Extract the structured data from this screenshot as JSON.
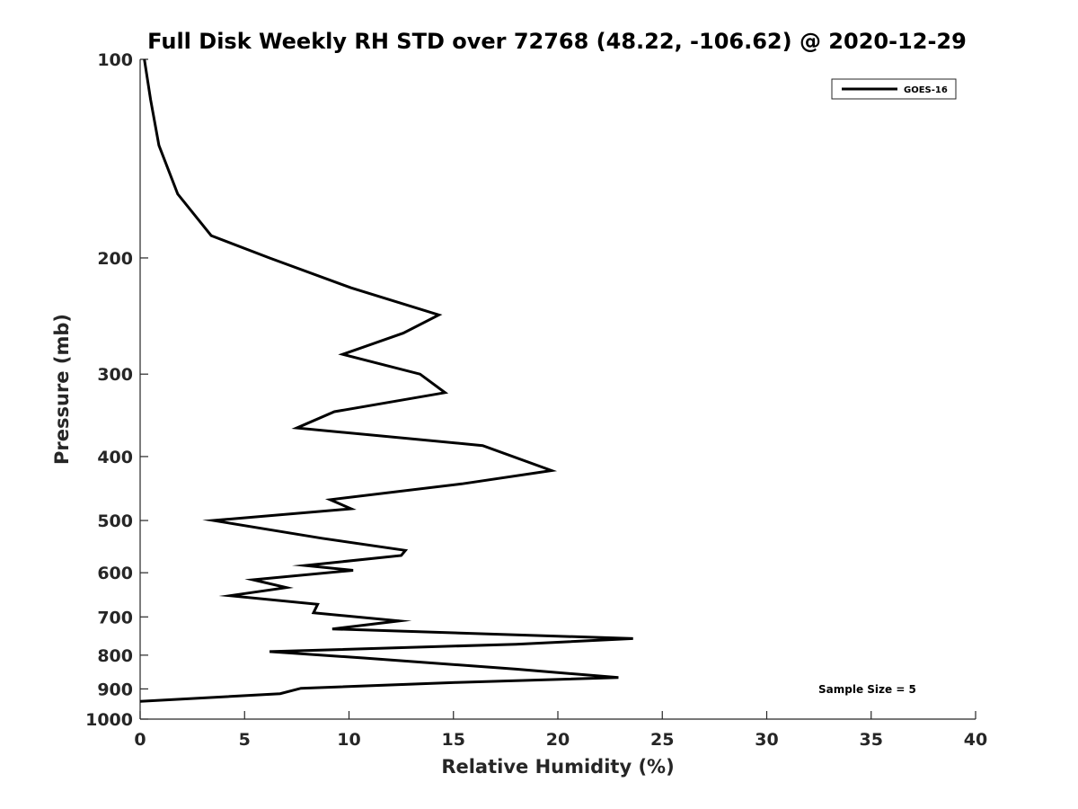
{
  "chart_data": {
    "type": "line",
    "title": "Full Disk Weekly RH STD over 72768 (48.22, -106.62) @ 2020-12-29",
    "xlabel": "Relative Humidity (%)",
    "ylabel": "Pressure (mb)",
    "xlim": [
      0,
      40
    ],
    "ylim": [
      100,
      1000
    ],
    "y_scale": "log",
    "y_reversed": true,
    "x_ticks": [
      0,
      5,
      10,
      15,
      20,
      25,
      30,
      35,
      40
    ],
    "y_ticks": [
      100,
      200,
      300,
      400,
      500,
      600,
      700,
      800,
      900,
      1000
    ],
    "grid": false,
    "legend_position": "top-right",
    "annotation": "Sample Size = 5",
    "series": [
      {
        "name": "GOES-16",
        "color": "#000000",
        "points": [
          [
            0.2,
            100
          ],
          [
            0.5,
            115
          ],
          [
            0.9,
            135
          ],
          [
            1.8,
            160
          ],
          [
            3.4,
            185
          ],
          [
            6.2,
            200
          ],
          [
            10.1,
            222
          ],
          [
            14.3,
            244
          ],
          [
            12.6,
            260
          ],
          [
            9.7,
            280
          ],
          [
            13.4,
            300
          ],
          [
            14.6,
            320
          ],
          [
            9.3,
            342
          ],
          [
            7.5,
            362
          ],
          [
            16.4,
            385
          ],
          [
            19.7,
            420
          ],
          [
            15.4,
            440
          ],
          [
            9.1,
            465
          ],
          [
            10.1,
            480
          ],
          [
            3.5,
            500
          ],
          [
            8.7,
            532
          ],
          [
            12.7,
            555
          ],
          [
            12.5,
            565
          ],
          [
            7.9,
            585
          ],
          [
            10.2,
            595
          ],
          [
            5.4,
            615
          ],
          [
            7.0,
            632
          ],
          [
            4.3,
            650
          ],
          [
            8.5,
            670
          ],
          [
            8.3,
            690
          ],
          [
            12.4,
            710
          ],
          [
            9.2,
            730
          ],
          [
            23.6,
            755
          ],
          [
            18.0,
            770
          ],
          [
            6.2,
            790
          ],
          [
            10.7,
            808
          ],
          [
            18.0,
            840
          ],
          [
            22.9,
            865
          ],
          [
            15.1,
            880
          ],
          [
            7.7,
            898
          ],
          [
            6.7,
            915
          ],
          [
            0.0,
            940
          ]
        ]
      }
    ]
  }
}
